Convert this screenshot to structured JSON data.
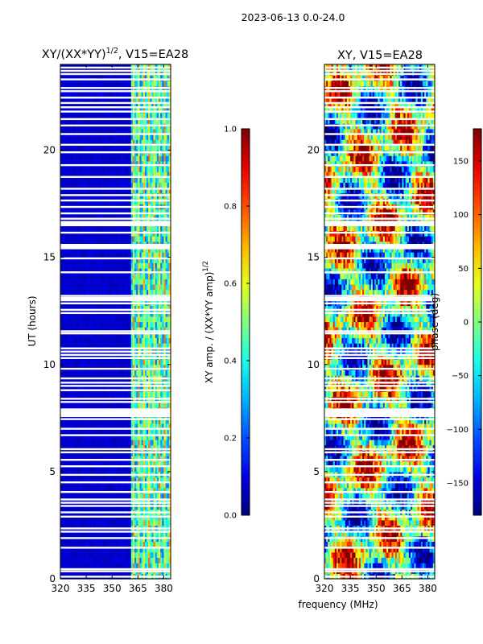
{
  "suptitle": "2023-06-13 0.0-24.0",
  "chart_data": [
    {
      "type": "heatmap",
      "title": "XY/(XX*YY)",
      "title_superscript": "1/2",
      "title_suffix": ", V15=EA28",
      "xlabel": "",
      "ylabel": "UT (hours)",
      "xlim": [
        320,
        384
      ],
      "ylim": [
        0,
        24
      ],
      "xticks": [
        320,
        335,
        350,
        365,
        380
      ],
      "yticks": [
        0,
        5,
        10,
        15,
        20
      ],
      "colormap": "jet",
      "colorbar": {
        "label": "XY amp. / (XX*YY amp)",
        "label_superscript": "1/2",
        "range": [
          0.0,
          1.0
        ],
        "ticks": [
          "0.0",
          "0.2",
          "0.4",
          "0.6",
          "0.8",
          "1.0"
        ],
        "tick_values": [
          0.0,
          0.2,
          0.4,
          0.6,
          0.8,
          1.0
        ]
      },
      "description_values": {
        "background_value": 0.05,
        "band_start_mhz": 361,
        "band_value_mean": 0.35
      }
    },
    {
      "type": "heatmap",
      "title": "XY, V15=EA28",
      "xlabel": "frequency (MHz)",
      "ylabel": "",
      "xlim": [
        320,
        384
      ],
      "ylim": [
        0,
        24
      ],
      "xticks": [
        320,
        335,
        350,
        365,
        380
      ],
      "yticks": [
        0,
        5,
        10,
        15,
        20
      ],
      "colormap": "jet",
      "colorbar": {
        "label": "phase (deg)",
        "range": [
          -180,
          180
        ],
        "ticks": [
          "150",
          "100",
          "50",
          "0",
          "−50",
          "−100",
          "−150"
        ],
        "tick_values": [
          150,
          100,
          50,
          0,
          -50,
          -100,
          -150
        ]
      }
    }
  ],
  "flagged_hours": [
    0.1,
    0.35,
    0.45,
    1.45,
    1.9,
    2.2,
    2.35,
    2.9,
    3.1,
    3.4,
    3.55,
    3.7,
    4.05,
    4.5,
    4.85,
    5.25,
    5.55,
    5.9,
    6.05,
    6.7,
    7.0,
    7.45,
    7.65,
    7.8,
    8.25,
    8.4,
    8.8,
    9.0,
    9.15,
    9.35,
    9.8,
    10.3,
    10.45,
    10.6,
    10.75,
    11.45,
    11.55,
    12.4,
    12.55,
    12.85,
    13.0,
    13.2,
    14.3,
    14.95,
    15.45,
    15.55,
    16.15,
    16.5,
    16.65,
    16.8,
    17.05,
    17.35,
    17.65,
    17.9,
    18.2,
    18.75,
    19.3,
    19.9,
    20.25,
    20.75,
    21.15,
    21.45,
    21.8,
    22.0,
    22.2,
    22.45,
    22.75,
    22.9,
    23.3,
    23.55,
    23.7,
    23.85
  ]
}
